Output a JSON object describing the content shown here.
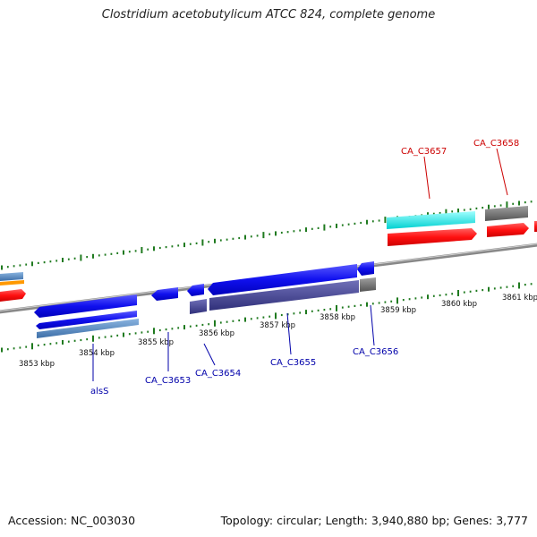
{
  "title": "Clostridium acetobutylicum ATCC 824, complete genome",
  "footer": {
    "accession": "Accession: NC_003030",
    "summary": "Topology: circular; Length: 3,940,880 bp; Genes: 3,777"
  },
  "scale_labels": [
    "3853 kbp",
    "3854 kbp",
    "3855 kbp",
    "3856 kbp",
    "3857 kbp",
    "3858 kbp",
    "3859 kbp",
    "3860 kbp",
    "3861 kbp"
  ],
  "genes": {
    "forward": [
      "CA_C3657",
      "CA_C3658"
    ],
    "reverse": [
      "alsS",
      "CA_C3653",
      "CA_C3654",
      "CA_C3655",
      "CA_C3656"
    ]
  },
  "colors": {
    "reverse_gene": "#0000ee",
    "reverse_cog": "#3d3d8c",
    "forward_gene": "#ff0000",
    "forward_cog": "#00e5e5",
    "unclassified": "#707070",
    "backbone": "#909090",
    "tick": "#1f7a1f",
    "label_forward": "#cc0000",
    "label_reverse": "#0000aa"
  }
}
